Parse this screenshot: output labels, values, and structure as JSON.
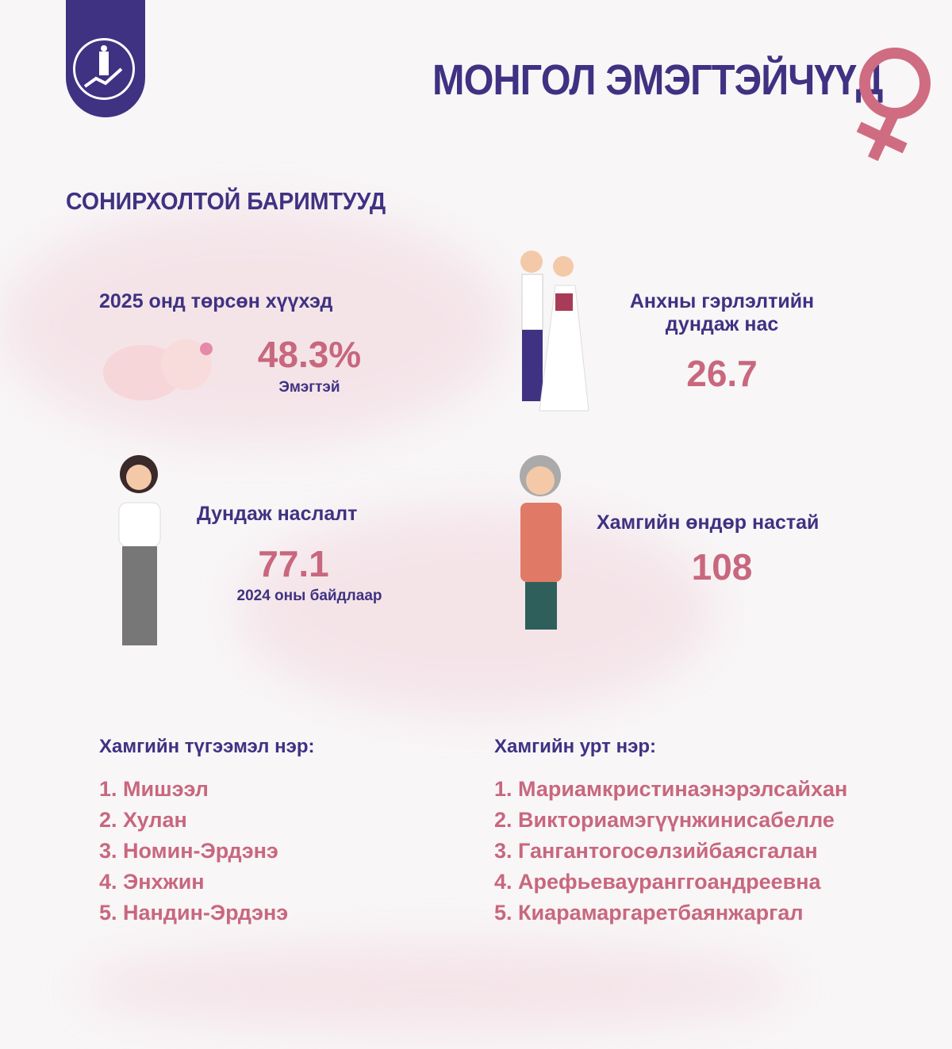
{
  "header": {
    "title": "МОНГОЛ ЭМЭГТЭЙЧҮҮД",
    "logo": "national-statistics-office-logo",
    "accent": "#3f3282",
    "highlight": "#c8677e"
  },
  "section_title": "СОНИРХОЛТОЙ БАРИМТУУД",
  "facts": {
    "births": {
      "label": "2025 онд төрсөн хүүхэд",
      "value": "48.3%",
      "note": "Эмэгтэй"
    },
    "marriage": {
      "label_line1": "Анхны гэрлэлтийн",
      "label_line2": "дундаж нас",
      "value": "26.7"
    },
    "life": {
      "label": "Дундаж наслалт",
      "value": "77.1",
      "note": "2024 оны байдлаар"
    },
    "oldest": {
      "label": "Хамгийн өндөр настай",
      "value": "108"
    }
  },
  "common_names": {
    "title": "Хамгийн түгээмэл нэр:",
    "items": [
      "1. Мишээл",
      "2. Хулан",
      "3. Номин-Эрдэнэ",
      "4. Энхжин",
      "5. Нандин-Эрдэнэ"
    ]
  },
  "long_names": {
    "title": "Хамгийн урт нэр:",
    "items": [
      "1. Мариамкристинаэнэрэлсайхан",
      "2. Викториамэгүүнжинисабелле",
      "3. Гангантогосөлзийбаясгалан",
      "4. Арефьевауранггоандреевна",
      "5. Киарамаргаретбаянжаргал"
    ]
  }
}
